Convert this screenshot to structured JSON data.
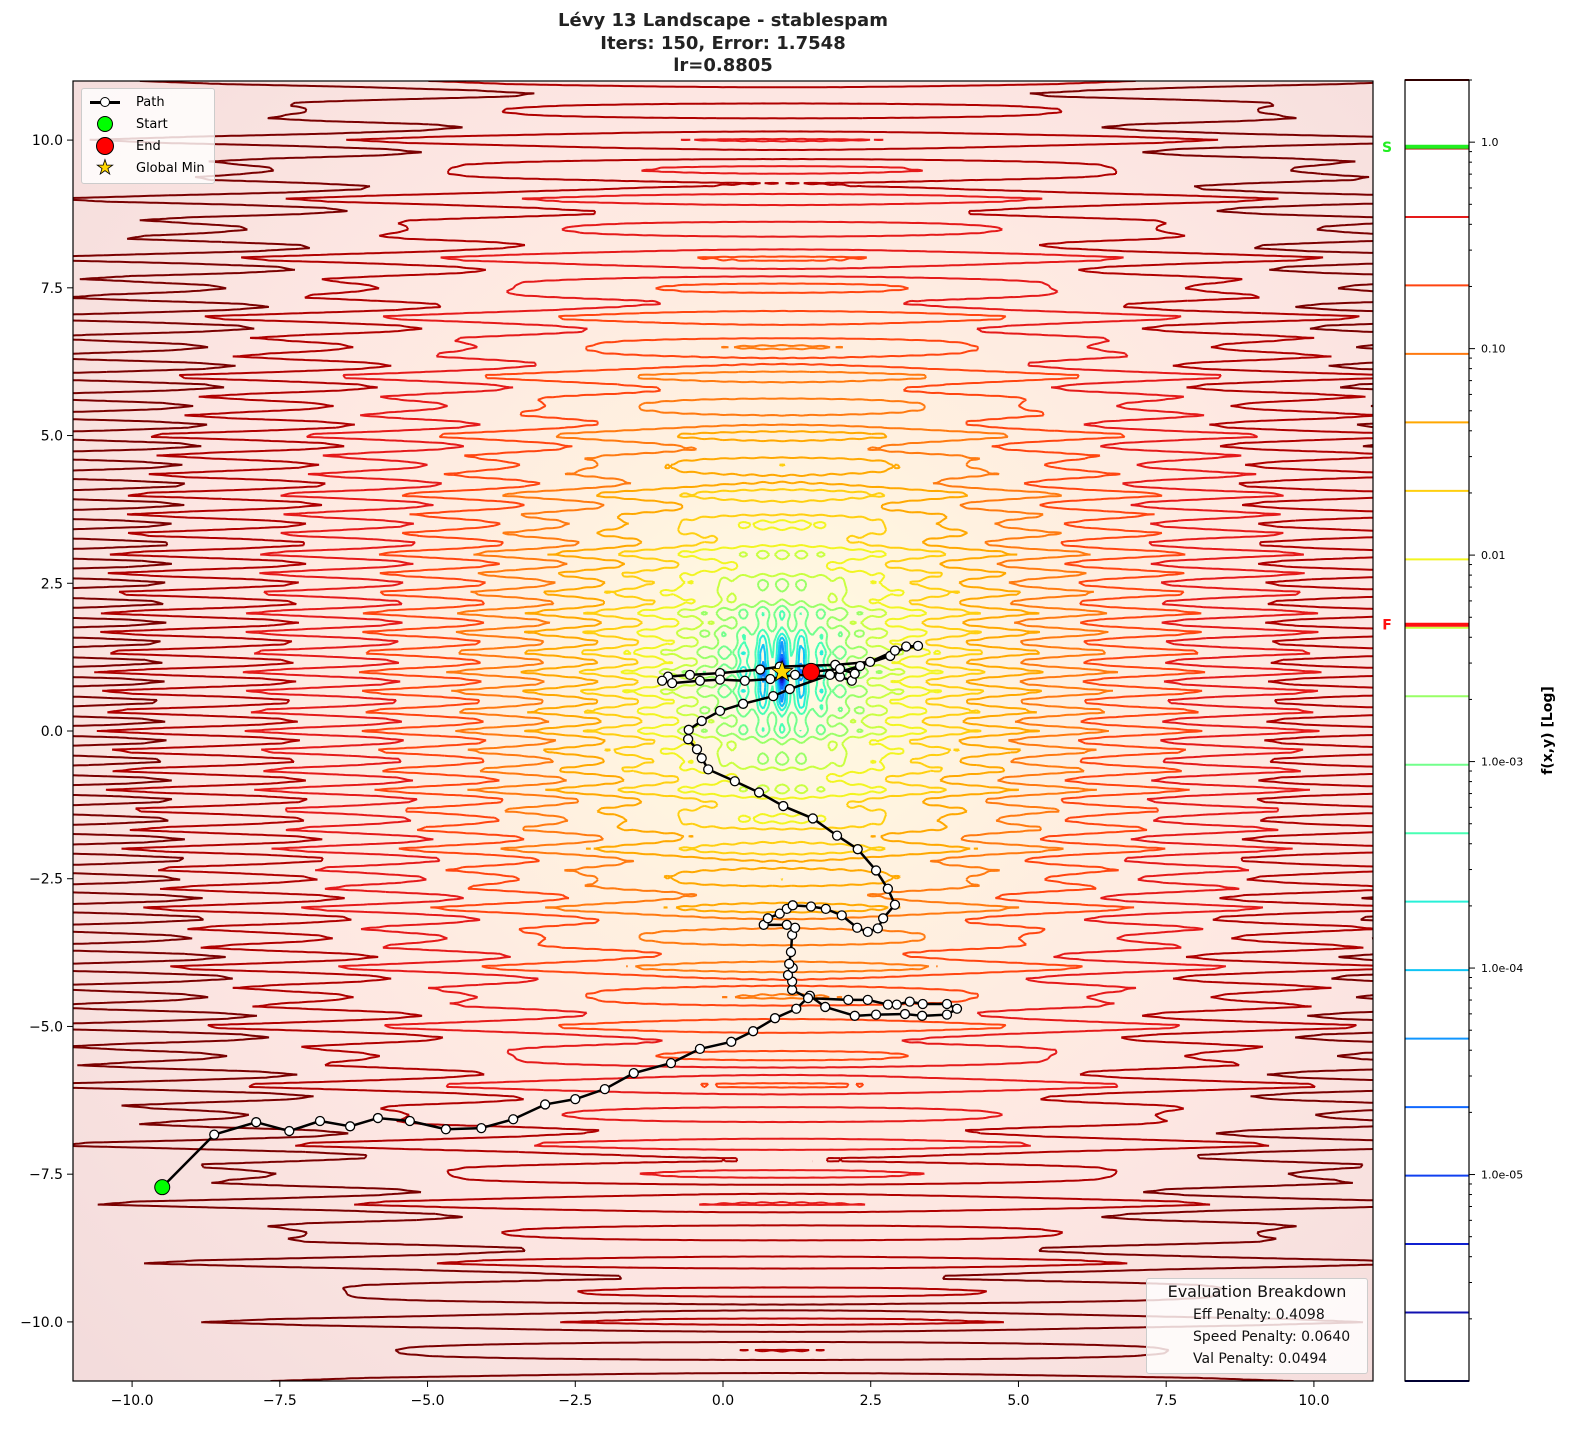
{
  "chart_data": {
    "type": "contour",
    "title": [
      "Lévy 13 Landscape - stablespam",
      "Iters: 150, Error: 1.7548",
      "lr=0.8805"
    ],
    "xlim": [
      -11,
      11
    ],
    "ylim": [
      -11,
      11
    ],
    "xticks": [
      -10,
      -7.5,
      -5,
      -2.5,
      0,
      2.5,
      5,
      7.5,
      10
    ],
    "xtick_labels": [
      "−10.0",
      "−7.5",
      "−5.0",
      "−2.5",
      "0.0",
      "2.5",
      "5.0",
      "7.5",
      "10.0"
    ],
    "yticks": [
      10,
      7.5,
      5,
      2.5,
      0,
      -2.5,
      -5,
      -7.5,
      -10
    ],
    "ytick_labels": [
      "10.0",
      "7.5",
      "5.0",
      "2.5",
      "0.0",
      "−2.5",
      "−5.0",
      "−7.5",
      "−10.0"
    ],
    "grid": false,
    "colorbar": {
      "label": "f(x,y) [Log]",
      "scale": "log",
      "range": [
        1e-06,
        2
      ],
      "ticks": [
        1,
        0.1,
        0.01,
        0.001,
        0.0001,
        1e-05
      ],
      "tick_labels": [
        "1.0",
        "0.10",
        "0.01",
        "1.0e-03",
        "1.0e-04",
        "1.0e-05"
      ],
      "level_colors": [
        "#7a0000",
        "#b00000",
        "#e51a1a",
        "#ff4510",
        "#ff7a10",
        "#ffa800",
        "#ffcf10",
        "#f2f520",
        "#c8ff40",
        "#98ff66",
        "#72ff8c",
        "#48ffb4",
        "#28f0d8",
        "#10c4f4",
        "#1096ff",
        "#1068ff",
        "#1040f0",
        "#1020d0",
        "#1010b0",
        "#000080"
      ],
      "markers": [
        {
          "label": "S",
          "value": 0.95,
          "color": "#22ee22"
        },
        {
          "label": "F",
          "value": 0.0046,
          "color": "#ff1010"
        }
      ]
    },
    "path": {
      "x": [
        -9.49,
        -8.61,
        -7.9,
        -7.34,
        -6.82,
        -6.31,
        -5.84,
        -5.3,
        -4.69,
        -4.09,
        -3.55,
        -3.01,
        -2.5,
        -2.0,
        -1.51,
        -0.88,
        -0.39,
        0.14,
        0.51,
        0.88,
        1.24,
        1.47,
        1.73,
        2.23,
        2.59,
        3.08,
        3.37,
        3.79,
        3.96,
        3.79,
        3.38,
        3.16,
        2.94,
        2.79,
        2.45,
        2.12,
        1.44,
        1.17,
        1.17,
        1.1,
        1.18,
        1.12,
        1.15,
        1.17,
        1.22,
        1.08,
        0.69,
        0.76,
        0.96,
        1.08,
        1.18,
        1.49,
        1.74,
        2.01,
        2.27,
        2.45,
        2.62,
        2.71,
        2.91,
        2.79,
        2.59,
        2.28,
        1.93,
        1.52,
        1.02,
        0.61,
        0.2,
        -0.25,
        -0.36,
        -0.44,
        -0.59,
        -0.58,
        -0.36,
        -0.05,
        0.34,
        0.85,
        1.13,
        1.81,
        2.32,
        2.83,
        3.1,
        3.3,
        2.91,
        2.49,
        1.9,
        0.96,
        0.63,
        -0.05,
        -0.56,
        -0.93,
        -1.03,
        -0.86,
        -0.39,
        -0.05,
        0.37,
        0.8,
        1.22,
        1.98,
        2.18,
        2.23,
        1.98,
        1.49
      ],
      "y": [
        -7.72,
        -6.83,
        -6.62,
        -6.77,
        -6.6,
        -6.69,
        -6.55,
        -6.6,
        -6.74,
        -6.72,
        -6.57,
        -6.32,
        -6.23,
        -6.06,
        -5.79,
        -5.62,
        -5.38,
        -5.26,
        -5.08,
        -4.86,
        -4.7,
        -4.48,
        -4.67,
        -4.82,
        -4.8,
        -4.79,
        -4.82,
        -4.8,
        -4.7,
        -4.62,
        -4.62,
        -4.58,
        -4.63,
        -4.63,
        -4.55,
        -4.55,
        -4.52,
        -4.38,
        -4.24,
        -4.13,
        -4.01,
        -3.94,
        -3.74,
        -3.45,
        -3.33,
        -3.28,
        -3.28,
        -3.17,
        -3.09,
        -3.01,
        -2.95,
        -2.97,
        -3.01,
        -3.12,
        -3.33,
        -3.4,
        -3.34,
        -3.17,
        -2.94,
        -2.67,
        -2.36,
        -2.0,
        -1.77,
        -1.48,
        -1.27,
        -1.04,
        -0.85,
        -0.65,
        -0.46,
        -0.31,
        -0.14,
        0.02,
        0.17,
        0.34,
        0.46,
        0.59,
        0.71,
        0.95,
        1.1,
        1.27,
        1.43,
        1.44,
        1.36,
        1.17,
        1.12,
        1.09,
        1.04,
        0.98,
        0.95,
        0.92,
        0.85,
        0.81,
        0.85,
        0.87,
        0.85,
        0.88,
        0.95,
        0.92,
        0.85,
        0.97,
        1.05,
        1.0
      ]
    },
    "start": [
      -9.49,
      -7.72
    ],
    "end": [
      1.49,
      1.0
    ],
    "global_min": [
      1,
      1
    ],
    "legend": {
      "placement": "top-left",
      "entries": [
        "Path",
        "Start",
        "End",
        "Global Min"
      ]
    },
    "colors": {
      "path": "#000000",
      "start": "#00ff00",
      "end": "#ff0000",
      "global_min": "#ffd700"
    }
  },
  "evaluation": {
    "title": "Evaluation Breakdown",
    "rows": [
      "Eff Penalty: 0.4098",
      "Speed Penalty: 0.0640",
      "Val Penalty: 0.0494"
    ]
  }
}
